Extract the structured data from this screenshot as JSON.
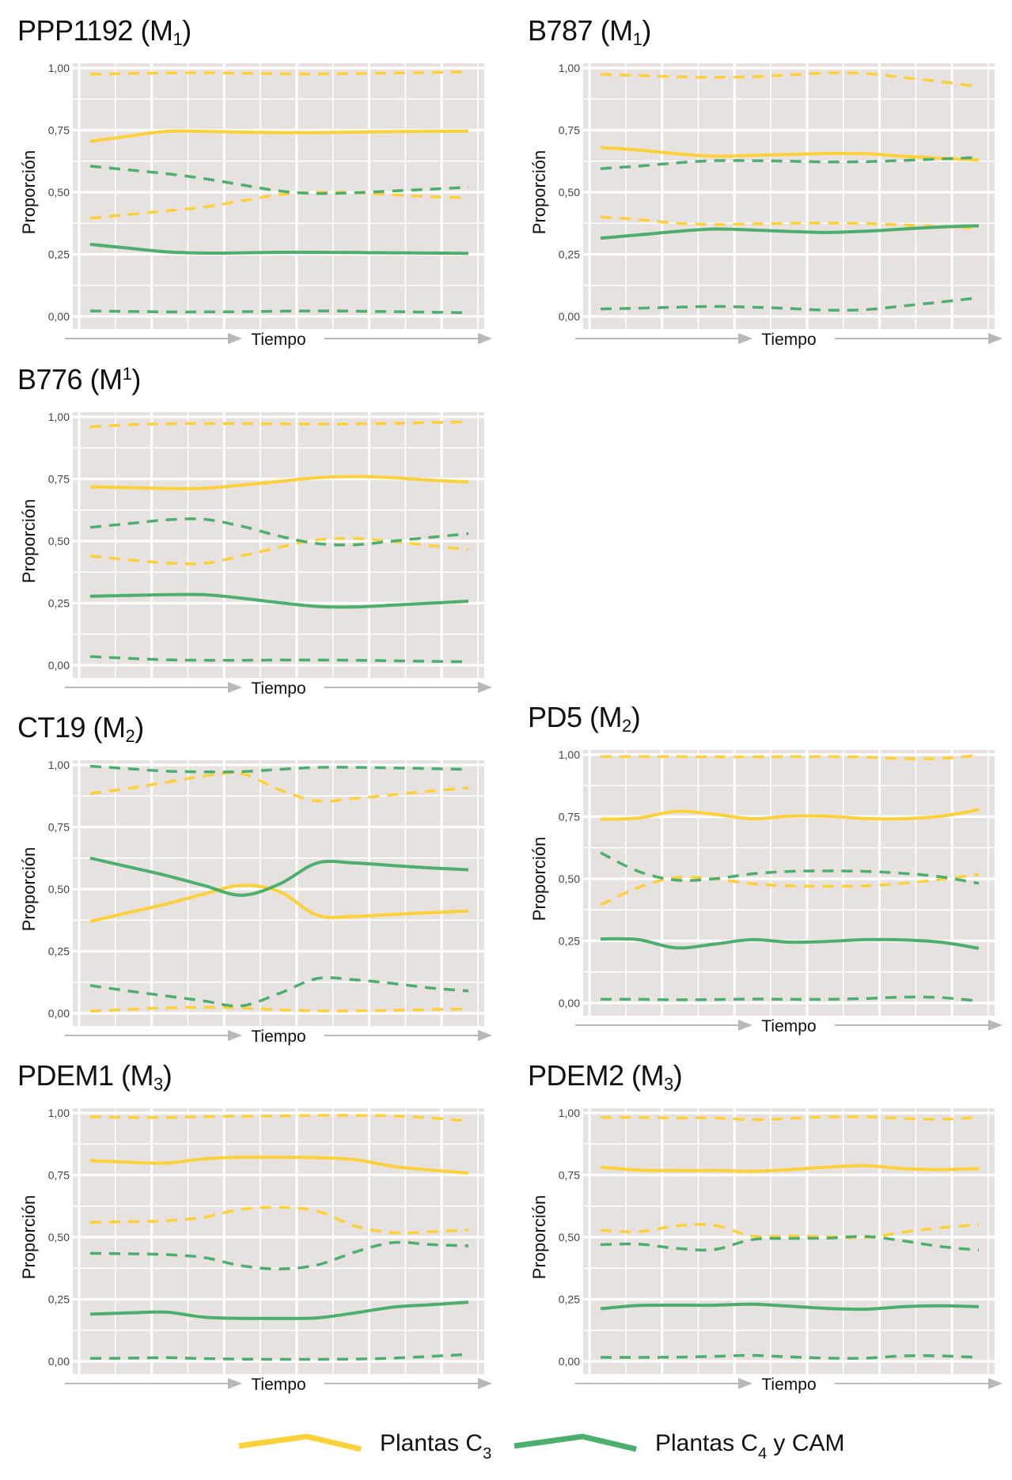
{
  "colors": {
    "c3": "#fdd13a",
    "c4cam": "#4caf6d",
    "panel_bg": "#e7e2df",
    "grid": "#ffffff",
    "arrow": "#b8b8b8"
  },
  "labels": {
    "ylabel": "Proporción",
    "xlabel": "Tiempo"
  },
  "legend": {
    "items": [
      {
        "label": "Plantas C",
        "sub": "3",
        "suffix": "",
        "color_key": "c3"
      },
      {
        "label": "Plantas C",
        "sub": "4",
        "suffix": " y CAM",
        "color_key": "c4cam"
      }
    ]
  },
  "chart_data": [
    {
      "type": "line",
      "title": "PPP1192 (M",
      "title_sub": "1",
      "title_sup": "",
      "xlabel": "Tiempo",
      "ylabel": "Proporción",
      "ylim": [
        0,
        1
      ],
      "yticks": [
        "0,00",
        "0,25",
        "0,50",
        "0,75",
        "1,00"
      ],
      "x": [
        0,
        1,
        2,
        3,
        4,
        5,
        6,
        7,
        8,
        9,
        10
      ],
      "series": [
        {
          "name": "C3 mean",
          "group": "c3",
          "style": "solid",
          "values": [
            0.705,
            0.725,
            0.745,
            0.745,
            0.742,
            0.74,
            0.74,
            0.742,
            0.744,
            0.745,
            0.746
          ]
        },
        {
          "name": "C3 upper",
          "group": "c3",
          "style": "dashed",
          "values": [
            0.975,
            0.978,
            0.98,
            0.981,
            0.979,
            0.977,
            0.976,
            0.978,
            0.98,
            0.982,
            0.984
          ]
        },
        {
          "name": "C3 lower",
          "group": "c3",
          "style": "dashed",
          "values": [
            0.395,
            0.41,
            0.425,
            0.44,
            0.465,
            0.49,
            0.5,
            0.498,
            0.49,
            0.482,
            0.478
          ]
        },
        {
          "name": "C4/CAM mean",
          "group": "c4cam",
          "style": "solid",
          "values": [
            0.29,
            0.275,
            0.26,
            0.255,
            0.256,
            0.258,
            0.258,
            0.257,
            0.256,
            0.255,
            0.254
          ]
        },
        {
          "name": "C4/CAM upper",
          "group": "c4cam",
          "style": "dashed",
          "values": [
            0.605,
            0.59,
            0.575,
            0.555,
            0.53,
            0.505,
            0.495,
            0.498,
            0.505,
            0.512,
            0.52
          ]
        },
        {
          "name": "C4/CAM lower",
          "group": "c4cam",
          "style": "dashed",
          "values": [
            0.022,
            0.02,
            0.018,
            0.018,
            0.019,
            0.021,
            0.022,
            0.021,
            0.019,
            0.017,
            0.015
          ]
        }
      ]
    },
    {
      "type": "line",
      "title": "B787 (M",
      "title_sub": "1",
      "title_sup": "",
      "xlabel": "Tiempo",
      "ylabel": "Proporción",
      "ylim": [
        0,
        1
      ],
      "yticks": [
        "0,00",
        "0,25",
        "0,50",
        "0,75",
        "1,00"
      ],
      "x": [
        0,
        1,
        2,
        3,
        4,
        5,
        6,
        7,
        8,
        9,
        10
      ],
      "series": [
        {
          "name": "C3 mean",
          "group": "c3",
          "style": "solid",
          "values": [
            0.68,
            0.67,
            0.655,
            0.645,
            0.648,
            0.652,
            0.656,
            0.655,
            0.645,
            0.637,
            0.63
          ]
        },
        {
          "name": "C3 upper",
          "group": "c3",
          "style": "dashed",
          "values": [
            0.975,
            0.97,
            0.965,
            0.962,
            0.965,
            0.972,
            0.98,
            0.978,
            0.962,
            0.945,
            0.925
          ]
        },
        {
          "name": "C3 lower",
          "group": "c3",
          "style": "dashed",
          "values": [
            0.4,
            0.39,
            0.375,
            0.37,
            0.372,
            0.375,
            0.376,
            0.374,
            0.368,
            0.362,
            0.355
          ]
        },
        {
          "name": "C4/CAM mean",
          "group": "c4cam",
          "style": "solid",
          "values": [
            0.315,
            0.328,
            0.342,
            0.352,
            0.348,
            0.342,
            0.338,
            0.343,
            0.352,
            0.36,
            0.365
          ]
        },
        {
          "name": "C4/CAM upper",
          "group": "c4cam",
          "style": "dashed",
          "values": [
            0.595,
            0.605,
            0.618,
            0.627,
            0.627,
            0.625,
            0.622,
            0.623,
            0.628,
            0.634,
            0.64
          ]
        },
        {
          "name": "C4/CAM lower",
          "group": "c4cam",
          "style": "dashed",
          "values": [
            0.03,
            0.033,
            0.037,
            0.04,
            0.037,
            0.032,
            0.025,
            0.027,
            0.042,
            0.058,
            0.075
          ]
        }
      ]
    },
    {
      "type": "line",
      "title": "B776 (M",
      "title_sub": "",
      "title_sup": "1",
      "xlabel": "Tiempo",
      "ylabel": "Proporción",
      "ylim": [
        0,
        1
      ],
      "yticks": [
        "0,00",
        "0,25",
        "0,50",
        "0,75",
        "1,00"
      ],
      "x": [
        0,
        1,
        2,
        3,
        4,
        5,
        6,
        7,
        8,
        9,
        10
      ],
      "series": [
        {
          "name": "C3 mean",
          "group": "c3",
          "style": "solid",
          "values": [
            0.718,
            0.715,
            0.712,
            0.712,
            0.725,
            0.74,
            0.755,
            0.76,
            0.755,
            0.745,
            0.738
          ]
        },
        {
          "name": "C3 upper",
          "group": "c3",
          "style": "dashed",
          "values": [
            0.96,
            0.968,
            0.972,
            0.973,
            0.973,
            0.972,
            0.971,
            0.972,
            0.974,
            0.977,
            0.98
          ]
        },
        {
          "name": "C3 lower",
          "group": "c3",
          "style": "dashed",
          "values": [
            0.44,
            0.425,
            0.412,
            0.41,
            0.44,
            0.475,
            0.505,
            0.51,
            0.498,
            0.482,
            0.465
          ]
        },
        {
          "name": "C4/CAM mean",
          "group": "c4cam",
          "style": "solid",
          "values": [
            0.278,
            0.281,
            0.284,
            0.284,
            0.27,
            0.252,
            0.237,
            0.235,
            0.242,
            0.25,
            0.258
          ]
        },
        {
          "name": "C4/CAM upper",
          "group": "c4cam",
          "style": "dashed",
          "values": [
            0.555,
            0.57,
            0.585,
            0.588,
            0.56,
            0.52,
            0.49,
            0.485,
            0.5,
            0.515,
            0.53
          ]
        },
        {
          "name": "C4/CAM lower",
          "group": "c4cam",
          "style": "dashed",
          "values": [
            0.035,
            0.028,
            0.022,
            0.02,
            0.02,
            0.021,
            0.021,
            0.02,
            0.018,
            0.016,
            0.014
          ]
        }
      ]
    },
    {
      "type": "line",
      "title": "CT19 (M",
      "title_sub": "2",
      "title_sup": "",
      "xlabel": "Tiempo",
      "ylabel": "Proporción",
      "ylim": [
        0,
        1
      ],
      "yticks": [
        "0,00",
        "0,25",
        "0,50",
        "0,75",
        "1,00"
      ],
      "x": [
        0,
        1,
        2,
        3,
        4,
        5,
        6,
        7,
        8,
        9,
        10
      ],
      "series": [
        {
          "name": "C3 mean",
          "group": "c3",
          "style": "solid",
          "values": [
            0.37,
            0.405,
            0.44,
            0.48,
            0.515,
            0.49,
            0.395,
            0.39,
            0.398,
            0.405,
            0.412
          ]
        },
        {
          "name": "C3 upper",
          "group": "c3",
          "style": "dashed",
          "values": [
            0.885,
            0.905,
            0.93,
            0.955,
            0.965,
            0.9,
            0.855,
            0.865,
            0.88,
            0.895,
            0.908
          ]
        },
        {
          "name": "C3 lower",
          "group": "c3",
          "style": "dashed",
          "values": [
            0.008,
            0.016,
            0.022,
            0.024,
            0.022,
            0.014,
            0.01,
            0.01,
            0.012,
            0.015,
            0.018
          ]
        },
        {
          "name": "C4/CAM mean",
          "group": "c4cam",
          "style": "solid",
          "values": [
            0.625,
            0.59,
            0.555,
            0.515,
            0.475,
            0.52,
            0.605,
            0.605,
            0.595,
            0.585,
            0.578
          ]
        },
        {
          "name": "C4/CAM upper",
          "group": "c4cam",
          "style": "dashed",
          "values": [
            0.995,
            0.985,
            0.975,
            0.972,
            0.973,
            0.982,
            0.99,
            0.99,
            0.988,
            0.985,
            0.982
          ]
        },
        {
          "name": "C4/CAM lower",
          "group": "c4cam",
          "style": "dashed",
          "values": [
            0.112,
            0.09,
            0.07,
            0.05,
            0.03,
            0.08,
            0.14,
            0.135,
            0.12,
            0.102,
            0.09
          ]
        }
      ]
    },
    {
      "type": "line",
      "title": "PD5 (M",
      "title_sub": "2",
      "title_sup": "",
      "xlabel": "Tiempo",
      "ylabel": "Proporción",
      "ylim": [
        0,
        1
      ],
      "yticks": [
        "0,00",
        "0,25",
        "0,50",
        "0,75",
        "1,00"
      ],
      "x": [
        0,
        1,
        2,
        3,
        4,
        5,
        6,
        7,
        8,
        9,
        10
      ],
      "series": [
        {
          "name": "C3 mean",
          "group": "c3",
          "style": "solid",
          "values": [
            0.74,
            0.745,
            0.772,
            0.76,
            0.742,
            0.752,
            0.752,
            0.743,
            0.742,
            0.752,
            0.778
          ]
        },
        {
          "name": "C3 upper",
          "group": "c3",
          "style": "dashed",
          "values": [
            0.992,
            0.992,
            0.992,
            0.991,
            0.991,
            0.992,
            0.992,
            0.99,
            0.984,
            0.985,
            0.997
          ]
        },
        {
          "name": "C3 lower",
          "group": "c3",
          "style": "dashed",
          "values": [
            0.395,
            0.465,
            0.505,
            0.5,
            0.48,
            0.472,
            0.47,
            0.472,
            0.482,
            0.498,
            0.518
          ]
        },
        {
          "name": "C4/CAM mean",
          "group": "c4cam",
          "style": "solid",
          "values": [
            0.258,
            0.255,
            0.222,
            0.237,
            0.255,
            0.245,
            0.248,
            0.255,
            0.254,
            0.245,
            0.22
          ]
        },
        {
          "name": "C4/CAM upper",
          "group": "c4cam",
          "style": "dashed",
          "values": [
            0.605,
            0.53,
            0.495,
            0.5,
            0.52,
            0.53,
            0.532,
            0.53,
            0.522,
            0.508,
            0.482
          ]
        },
        {
          "name": "C4/CAM lower",
          "group": "c4cam",
          "style": "dashed",
          "values": [
            0.015,
            0.015,
            0.013,
            0.014,
            0.016,
            0.015,
            0.015,
            0.018,
            0.024,
            0.022,
            0.008
          ]
        }
      ]
    },
    {
      "type": "line",
      "title": "PDEM1 (M",
      "title_sub": "3",
      "title_sup": "",
      "xlabel": "Tiempo",
      "ylabel": "Proporción",
      "ylim": [
        0,
        1
      ],
      "yticks": [
        "0,00",
        "0,25",
        "0,50",
        "0,75",
        "1,00"
      ],
      "x": [
        0,
        1,
        2,
        3,
        4,
        5,
        6,
        7,
        8,
        9,
        10
      ],
      "series": [
        {
          "name": "C3 mean",
          "group": "c3",
          "style": "solid",
          "values": [
            0.808,
            0.802,
            0.798,
            0.815,
            0.822,
            0.822,
            0.82,
            0.812,
            0.785,
            0.77,
            0.758
          ]
        },
        {
          "name": "C3 upper",
          "group": "c3",
          "style": "dashed",
          "values": [
            0.985,
            0.982,
            0.982,
            0.985,
            0.987,
            0.988,
            0.99,
            0.99,
            0.988,
            0.98,
            0.968
          ]
        },
        {
          "name": "C3 lower",
          "group": "c3",
          "style": "dashed",
          "values": [
            0.56,
            0.562,
            0.566,
            0.58,
            0.612,
            0.62,
            0.605,
            0.545,
            0.518,
            0.522,
            0.53
          ]
        },
        {
          "name": "C4/CAM mean",
          "group": "c4cam",
          "style": "solid",
          "values": [
            0.19,
            0.195,
            0.198,
            0.178,
            0.173,
            0.173,
            0.175,
            0.195,
            0.218,
            0.228,
            0.238
          ]
        },
        {
          "name": "C4/CAM upper",
          "group": "c4cam",
          "style": "dashed",
          "values": [
            0.435,
            0.433,
            0.43,
            0.418,
            0.385,
            0.372,
            0.388,
            0.44,
            0.478,
            0.47,
            0.465
          ]
        },
        {
          "name": "C4/CAM lower",
          "group": "c4cam",
          "style": "dashed",
          "values": [
            0.012,
            0.013,
            0.015,
            0.011,
            0.009,
            0.008,
            0.008,
            0.009,
            0.013,
            0.02,
            0.028
          ]
        }
      ]
    },
    {
      "type": "line",
      "title": "PDEM2 (M",
      "title_sub": "3",
      "title_sup": "",
      "xlabel": "Tiempo",
      "ylabel": "Proporción",
      "ylim": [
        0,
        1
      ],
      "yticks": [
        "0,00",
        "0,25",
        "0,50",
        "0,75",
        "1,00"
      ],
      "x": [
        0,
        1,
        2,
        3,
        4,
        5,
        6,
        7,
        8,
        9,
        10
      ],
      "series": [
        {
          "name": "C3 mean",
          "group": "c3",
          "style": "solid",
          "values": [
            0.782,
            0.77,
            0.768,
            0.768,
            0.765,
            0.772,
            0.782,
            0.788,
            0.776,
            0.772,
            0.776
          ]
        },
        {
          "name": "C3 upper",
          "group": "c3",
          "style": "dashed",
          "values": [
            0.982,
            0.982,
            0.98,
            0.98,
            0.973,
            0.978,
            0.984,
            0.984,
            0.978,
            0.975,
            0.982
          ]
        },
        {
          "name": "C3 lower",
          "group": "c3",
          "style": "dashed",
          "values": [
            0.528,
            0.522,
            0.545,
            0.548,
            0.505,
            0.505,
            0.502,
            0.498,
            0.52,
            0.538,
            0.55
          ]
        },
        {
          "name": "C4/CAM mean",
          "group": "c4cam",
          "style": "solid",
          "values": [
            0.212,
            0.225,
            0.226,
            0.226,
            0.23,
            0.222,
            0.213,
            0.21,
            0.22,
            0.224,
            0.22
          ]
        },
        {
          "name": "C4/CAM upper",
          "group": "c4cam",
          "style": "dashed",
          "values": [
            0.47,
            0.472,
            0.455,
            0.45,
            0.49,
            0.495,
            0.496,
            0.503,
            0.485,
            0.462,
            0.448
          ]
        },
        {
          "name": "C4/CAM lower",
          "group": "c4cam",
          "style": "dashed",
          "values": [
            0.016,
            0.016,
            0.017,
            0.02,
            0.024,
            0.018,
            0.013,
            0.013,
            0.022,
            0.022,
            0.016
          ]
        }
      ]
    }
  ]
}
